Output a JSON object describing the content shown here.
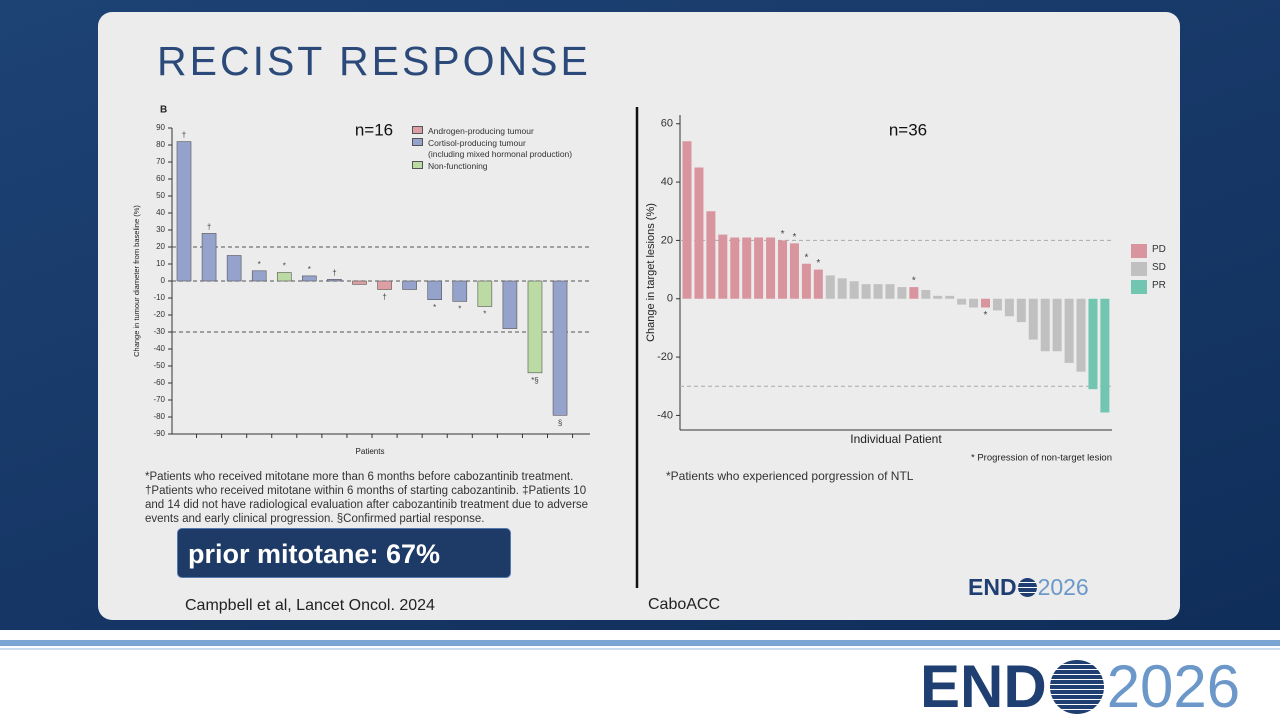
{
  "slide": {
    "title": "RECIST RESPONSE",
    "left_footnote": [
      "*Patients who received mitotane more than 6 months before cabozantinib treatment.",
      "†Patients who received mitotane within 6 months of starting cabozantinib. ‡Patients 10",
      "and 14 did not have radiological evaluation after cabozantinib treatment due to adverse",
      "events and early clinical progression. §Confirmed partial response."
    ],
    "highlight": "prior mitotane: 67%",
    "left_citation": "Campbell et al, Lancet Oncol. 2024",
    "right_footnote": "*Patients who experienced porgression of NTL",
    "right_citation": "CaboACC",
    "logo": {
      "left": "END",
      "right": "2026"
    }
  },
  "footer": {
    "logo": {
      "left": "END",
      "right": "2026"
    }
  },
  "chart_data": [
    {
      "type": "bar",
      "panel_label": "B",
      "annotation": "n=16",
      "ylabel": "Change in tumour diameter from baseline (%)",
      "xlabel": "Patients",
      "values": [
        82,
        28,
        15,
        6,
        5,
        3,
        1,
        -2,
        -5,
        -5,
        -11,
        -12,
        -15,
        -28,
        -54,
        -79
      ],
      "colors": [
        "#95a3cc",
        "#95a3cc",
        "#95a3cc",
        "#95a3cc",
        "#bcdaa4",
        "#95a3cc",
        "#95a3cc",
        "#dd9fa3",
        "#dd9fa3",
        "#95a3cc",
        "#95a3cc",
        "#95a3cc",
        "#bcdaa4",
        "#95a3cc",
        "#bcdaa4",
        "#95a3cc"
      ],
      "markers": [
        "†",
        "†",
        null,
        "*",
        "*",
        "*",
        "†",
        null,
        "†",
        null,
        "*",
        "*",
        "*",
        null,
        "*§",
        "§"
      ],
      "legend": [
        {
          "name": "Androgen-producing tumour",
          "color": "#dd9fa3"
        },
        {
          "name": "Cortisol-producing tumour\n(including mixed hormonal production)",
          "color": "#95a3cc"
        },
        {
          "name": "Non-functioning",
          "color": "#bcdaa4"
        }
      ],
      "reference_lines": [
        20,
        0,
        -30
      ],
      "ylim": [
        -90,
        90
      ],
      "yticks": [
        -90,
        -80,
        -70,
        -60,
        -50,
        -40,
        -30,
        -20,
        -10,
        0,
        10,
        20,
        30,
        40,
        50,
        60,
        70,
        80,
        90
      ]
    },
    {
      "type": "bar",
      "annotation": "n=36",
      "ylabel": "Change in target lesions (%)",
      "xlabel": "Individual Patient",
      "footnote": "* Progression of non-target lesion",
      "values": [
        54,
        45,
        30,
        22,
        21,
        21,
        21,
        21,
        20,
        19,
        12,
        10,
        8,
        7,
        6,
        5,
        5,
        5,
        4,
        4,
        3,
        1,
        1,
        -2,
        -3,
        -3,
        -4,
        -6,
        -8,
        -14,
        -18,
        -18,
        -22,
        -25,
        -31,
        -39
      ],
      "colors": [
        "#d9959d",
        "#d9959d",
        "#d9959d",
        "#d9959d",
        "#d9959d",
        "#d9959d",
        "#d9959d",
        "#d9959d",
        "#d9959d",
        "#d9959d",
        "#d9959d",
        "#d9959d",
        "#c0c0c0",
        "#c0c0c0",
        "#c0c0c0",
        "#c0c0c0",
        "#c0c0c0",
        "#c0c0c0",
        "#c0c0c0",
        "#d9959d",
        "#c0c0c0",
        "#c0c0c0",
        "#c0c0c0",
        "#c0c0c0",
        "#c0c0c0",
        "#d9959d",
        "#c0c0c0",
        "#c0c0c0",
        "#c0c0c0",
        "#c0c0c0",
        "#c0c0c0",
        "#c0c0c0",
        "#c0c0c0",
        "#c0c0c0",
        "#72c6b1",
        "#72c6b1"
      ],
      "markers": [
        null,
        null,
        null,
        null,
        null,
        null,
        null,
        null,
        "*",
        "*",
        "*",
        "*",
        null,
        null,
        null,
        null,
        null,
        null,
        null,
        "*",
        null,
        null,
        null,
        null,
        null,
        "*",
        null,
        null,
        null,
        null,
        null,
        null,
        null,
        null,
        null,
        null
      ],
      "legend": [
        {
          "name": "PD",
          "color": "#d9959d"
        },
        {
          "name": "SD",
          "color": "#c0c0c0"
        },
        {
          "name": "PR",
          "color": "#72c6b1"
        }
      ],
      "reference_lines": [
        20,
        -30
      ],
      "ylim": [
        -45,
        63
      ],
      "yticks": [
        -40,
        -20,
        0,
        20,
        40,
        60
      ]
    }
  ]
}
